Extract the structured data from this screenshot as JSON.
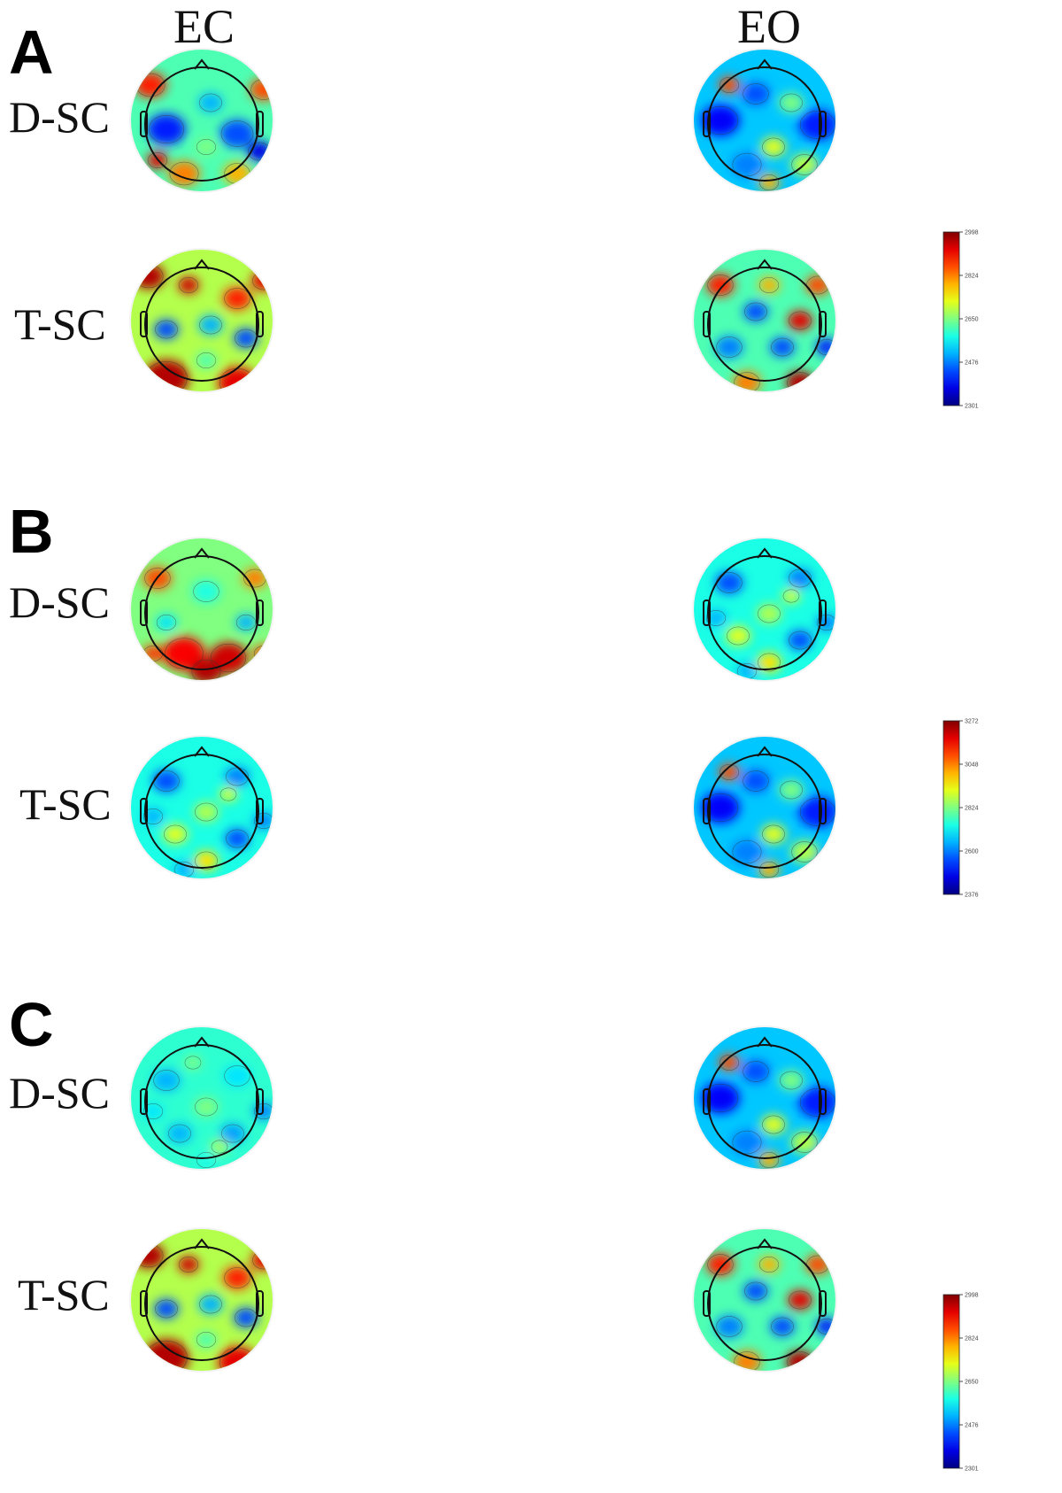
{
  "columns": {
    "ec": "EC",
    "eo": "EO"
  },
  "panels": [
    {
      "letter": "A",
      "rows": [
        {
          "label": "D-SC",
          "ec": {
            "scheme": "mixed-blue-red"
          },
          "eo": {
            "scheme": "blue-dominant"
          }
        },
        {
          "label": "T-SC",
          "ec": {
            "scheme": "red-dominant"
          },
          "eo": {
            "scheme": "mixed-warm"
          }
        }
      ],
      "colorbar": {
        "ticks": [
          "2998",
          "2824",
          "2650",
          "2476",
          "2301"
        ]
      }
    },
    {
      "letter": "B",
      "rows": [
        {
          "label": "D-SC",
          "ec": {
            "scheme": "warm-posterior"
          },
          "eo": {
            "scheme": "cool-mixed"
          }
        },
        {
          "label": "T-SC",
          "ec": {
            "scheme": "cool-mixed"
          },
          "eo": {
            "scheme": "blue-dominant"
          }
        }
      ],
      "colorbar": {
        "ticks": [
          "3272",
          "3048",
          "2824",
          "2600",
          "2376"
        ]
      }
    },
    {
      "letter": "C",
      "rows": [
        {
          "label": "D-SC",
          "ec": {
            "scheme": "cool-uniform"
          },
          "eo": {
            "scheme": "blue-dominant"
          }
        },
        {
          "label": "T-SC",
          "ec": {
            "scheme": "red-dominant"
          },
          "eo": {
            "scheme": "mixed-warm"
          }
        }
      ],
      "colorbar": {
        "ticks": [
          "2998",
          "2824",
          "2650",
          "2476",
          "2301"
        ]
      }
    }
  ],
  "colors": {
    "jet_low": "#00007f",
    "jet_mid": "#7fff7f",
    "jet_high": "#7f0000"
  }
}
